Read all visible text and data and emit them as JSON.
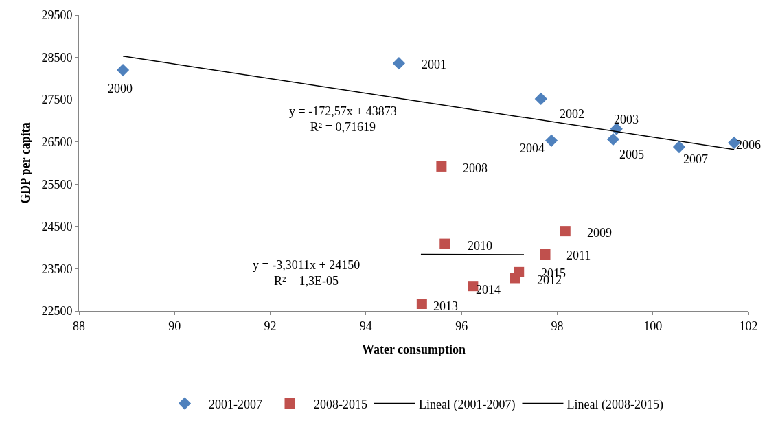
{
  "chart_data": {
    "type": "scatter",
    "xlabel": "Water consumption",
    "ylabel": "GDP per capita",
    "xlim": [
      88,
      102
    ],
    "xticks": [
      88,
      90,
      92,
      94,
      96,
      98,
      100,
      102
    ],
    "ylim": [
      22500,
      29500
    ],
    "yticks": [
      22500,
      23500,
      24500,
      25500,
      26500,
      27500,
      28500,
      29500
    ],
    "grid": false,
    "legend": "bottom",
    "series": [
      {
        "name": "2001-2007",
        "color": "#4f81bd",
        "marker": "diamond",
        "x": [
          88.92,
          94.69,
          97.66,
          99.24,
          97.88,
          99.17,
          101.7,
          100.55
        ],
        "values": [
          28200,
          28360,
          27520,
          26810,
          26530,
          26560,
          26480,
          26380
        ]
      },
      {
        "name": "2008-2015",
        "color": "#c0504d",
        "marker": "square",
        "x": [
          95.58,
          98.17,
          95.65,
          97.75,
          97.12,
          95.17,
          96.24,
          97.2
        ],
        "values": [
          25920,
          24390,
          24090,
          23840,
          23280,
          22670,
          23090,
          23420
        ]
      },
      {
        "name": "Lineal (2001-2007)",
        "type": "line",
        "color": "#000000",
        "marker": "none",
        "x": [
          88.92,
          101.7
        ],
        "values": [
          28530,
          26320
        ]
      },
      {
        "name": "Lineal (2008-2015)",
        "type": "line",
        "color": "#000000",
        "marker": "none",
        "x": [
          95.15,
          98.15
        ],
        "values": [
          23840,
          23830
        ]
      }
    ],
    "annotations": [
      {
        "text": "2000",
        "x": 88.92,
        "y": 28200
      },
      {
        "text": "2001",
        "x": 94.69,
        "y": 28360
      },
      {
        "text": "2002",
        "x": 97.66,
        "y": 27520
      },
      {
        "text": "2003",
        "x": 99.24,
        "y": 26810
      },
      {
        "text": "2004",
        "x": 97.88,
        "y": 26530
      },
      {
        "text": "2005",
        "x": 99.17,
        "y": 26560
      },
      {
        "text": "2006",
        "x": 101.7,
        "y": 26480
      },
      {
        "text": "2007",
        "x": 100.55,
        "y": 26380
      },
      {
        "text": "2008",
        "x": 95.58,
        "y": 25920
      },
      {
        "text": "2009",
        "x": 98.17,
        "y": 24390
      },
      {
        "text": "2010",
        "x": 95.65,
        "y": 24090
      },
      {
        "text": "2011",
        "x": 97.75,
        "y": 23840
      },
      {
        "text": "2012",
        "x": 97.12,
        "y": 23280
      },
      {
        "text": "2013",
        "x": 95.17,
        "y": 22670
      },
      {
        "text": "2014",
        "x": 96.24,
        "y": 23090
      },
      {
        "text": "2015",
        "x": 97.2,
        "y": 23420
      },
      "y = -172,57x + 43873\nR² = 0,71619",
      "y = -3,3011x + 24150\nR² = 1,3E-05"
    ]
  }
}
